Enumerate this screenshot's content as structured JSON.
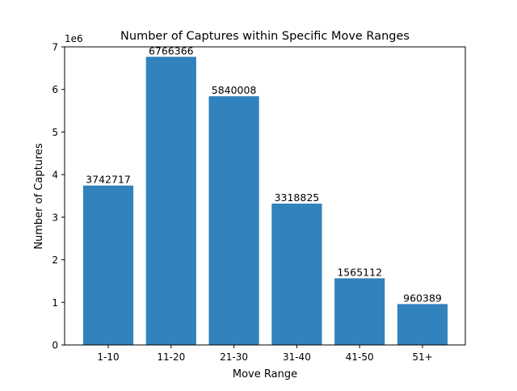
{
  "chart_data": {
    "type": "bar",
    "title": "Number of Captures within Specific Move Ranges",
    "xlabel": "Move Range",
    "ylabel": "Number of Captures",
    "y_offset_label": "1e6",
    "y_scale": 1000000,
    "categories": [
      "1-10",
      "11-20",
      "21-30",
      "31-40",
      "41-50",
      "51+"
    ],
    "values": [
      3742717,
      6766366,
      5840008,
      3318825,
      1565112,
      960389
    ],
    "data_labels": [
      "3742717",
      "6766366",
      "5840008",
      "3318825",
      "1565112",
      "960389"
    ],
    "ylim": [
      0,
      7000000
    ],
    "y_ticks": [
      0,
      1,
      2,
      3,
      4,
      5,
      6,
      7
    ],
    "y_tick_labels": [
      "0",
      "1",
      "2",
      "3",
      "4",
      "5",
      "6",
      "7"
    ],
    "bar_color": "#3182bd",
    "grid": false,
    "legend": "none"
  }
}
